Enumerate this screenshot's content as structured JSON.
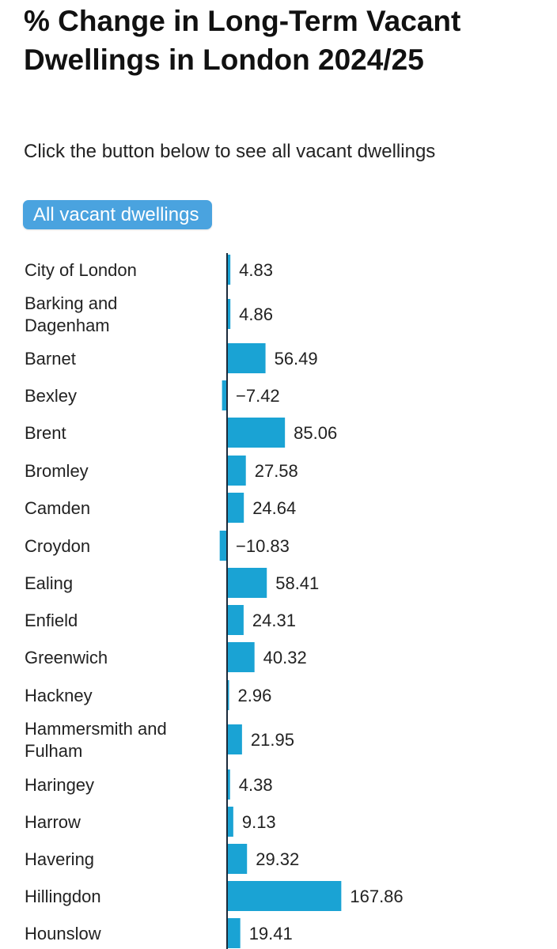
{
  "header": {
    "title": "% Change in Long-Term Vacant Dwellings in London 2024/25",
    "subtitle": "Click the button below to see all vacant dwellings"
  },
  "toggle": {
    "label": "All vacant dwellings"
  },
  "colors": {
    "bar": "#1aa3d4",
    "button": "#4aa3df",
    "axis": "#1b2a3a"
  },
  "chart_data": {
    "type": "bar",
    "orientation": "horizontal",
    "title": "% Change in Long-Term Vacant Dwellings in London 2024/25",
    "categories": [
      "City of London",
      "Barking and Dagenham",
      "Barnet",
      "Bexley",
      "Brent",
      "Bromley",
      "Camden",
      "Croydon",
      "Ealing",
      "Enfield",
      "Greenwich",
      "Hackney",
      "Hammersmith and Fulham",
      "Haringey",
      "Harrow",
      "Havering",
      "Hillingdon",
      "Hounslow"
    ],
    "values": [
      4.83,
      4.86,
      56.49,
      -7.42,
      85.06,
      27.58,
      24.64,
      -10.83,
      58.41,
      24.31,
      40.32,
      2.96,
      21.95,
      4.38,
      9.13,
      29.32,
      167.86,
      19.41
    ],
    "value_labels": [
      "4.83",
      "4.86",
      "56.49",
      "−7.42",
      "85.06",
      "27.58",
      "24.64",
      "−10.83",
      "58.41",
      "24.31",
      "40.32",
      "2.96",
      "21.95",
      "4.38",
      "9.13",
      "29.32",
      "167.86",
      "19.41"
    ],
    "grid": false,
    "legend": "none"
  }
}
